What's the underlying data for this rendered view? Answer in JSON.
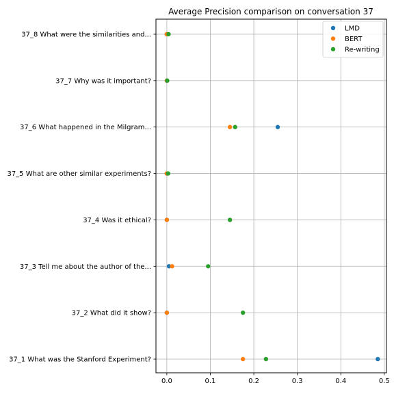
{
  "chart_data": {
    "type": "scatter",
    "title": "Average Precision comparison on conversation 37",
    "xlabel": "",
    "ylabel": "",
    "xlim": [
      -0.025,
      0.505
    ],
    "xticks": [
      0.0,
      0.1,
      0.2,
      0.3,
      0.4,
      0.5
    ],
    "xtick_labels": [
      "0.0",
      "0.1",
      "0.2",
      "0.3",
      "0.4",
      "0.5"
    ],
    "categories": [
      "37_1 What was the Stanford Experiment?",
      "37_2 What did it show?",
      "37_3 Tell me about the author of the...",
      "37_4 Was it ethical?",
      "37_5 What are other similar experiments?",
      "37_6 What happened in the Milgram...",
      "37_7 Why was it important?",
      "37_8 What were the similarities and..."
    ],
    "grid": true,
    "legend_position": "top-right",
    "series": [
      {
        "name": "LMD",
        "color": "#1f77b4",
        "values": [
          0.485,
          0.0,
          0.005,
          0.0,
          0.0,
          0.255,
          0.0,
          0.0
        ]
      },
      {
        "name": "BERT",
        "color": "#ff7f0e",
        "values": [
          0.175,
          0.0,
          0.012,
          0.0,
          0.0,
          0.145,
          0.0,
          0.0
        ]
      },
      {
        "name": "Re-writing",
        "color": "#2ca02c",
        "values": [
          0.228,
          0.175,
          0.095,
          0.145,
          0.003,
          0.157,
          0.001,
          0.004
        ]
      }
    ]
  }
}
